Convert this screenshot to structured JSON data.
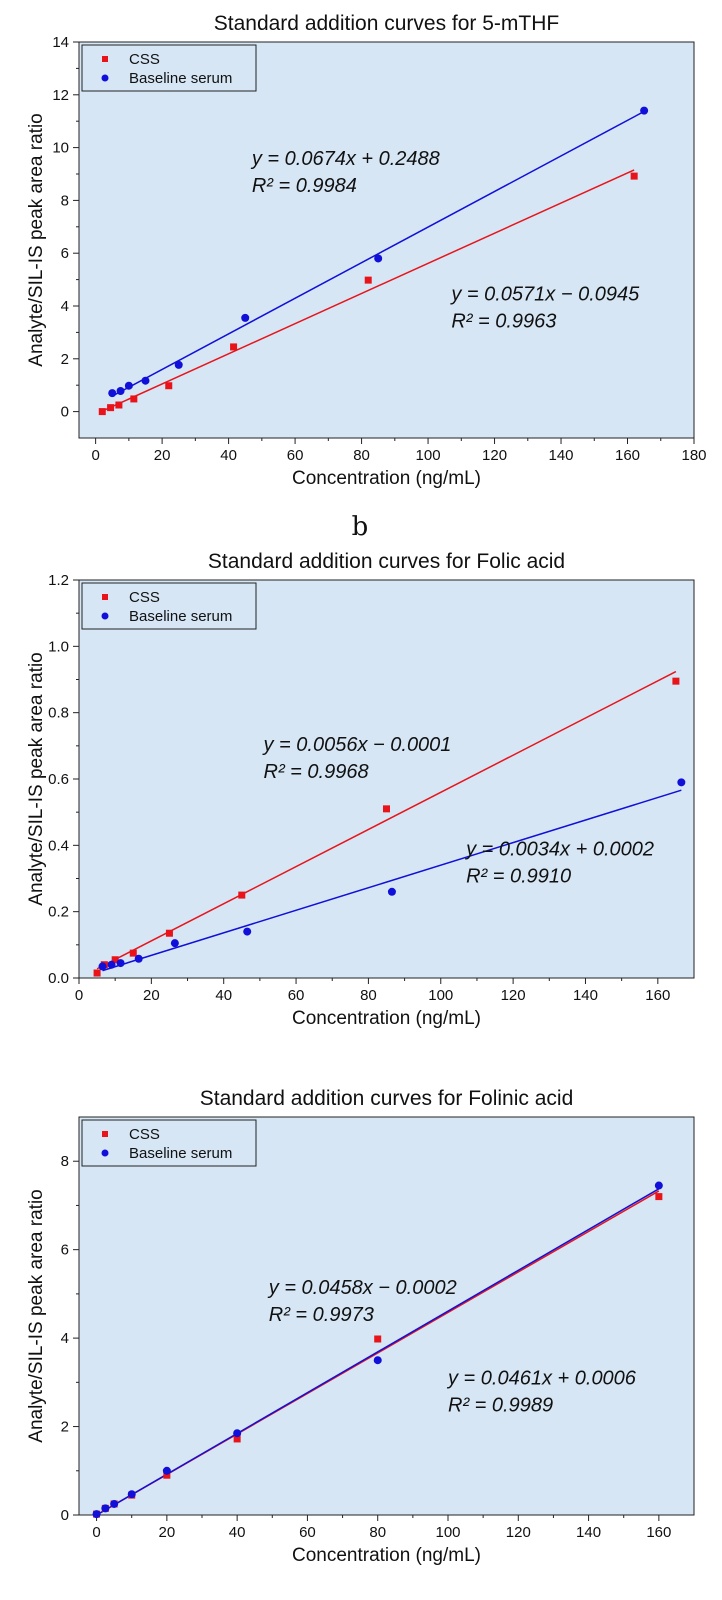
{
  "panel_labels": [
    "b"
  ],
  "chart_data": [
    {
      "type": "scatter",
      "title": "Standard addition curves for 5-mTHF",
      "xlabel": "Concentration (ng/mL)",
      "ylabel": "Analyte/SIL-IS peak area ratio",
      "xlim": [
        -5,
        180
      ],
      "ylim": [
        -1,
        14
      ],
      "xticks": [
        0,
        20,
        40,
        60,
        80,
        100,
        120,
        140,
        160,
        180
      ],
      "yticks": [
        0,
        2,
        4,
        6,
        8,
        10,
        12,
        14
      ],
      "background": "#d6e6f5",
      "legend": "top-left",
      "series": [
        {
          "name": "CSS",
          "color": "#e8141a",
          "marker": "square",
          "x": [
            2,
            4.5,
            7,
            11.5,
            22,
            41.5,
            82,
            162
          ],
          "y": [
            0.0,
            0.15,
            0.25,
            0.48,
            0.98,
            2.45,
            4.98,
            8.92
          ],
          "fit": {
            "slope": 0.0571,
            "intercept": -0.0945,
            "x_range": [
              2,
              162
            ]
          }
        },
        {
          "name": "Baseline serum",
          "color": "#1010d8",
          "marker": "circle",
          "x": [
            5,
            7.5,
            10,
            15,
            25,
            45,
            85,
            165
          ],
          "y": [
            0.7,
            0.78,
            0.98,
            1.17,
            1.77,
            3.55,
            5.8,
            11.4
          ],
          "fit": {
            "slope": 0.0674,
            "intercept": 0.2488,
            "x_range": [
              5,
              165
            ]
          }
        }
      ],
      "annotations": [
        {
          "series": 1,
          "lines": [
            "y = 0.0674x + 0.2488",
            "R² = 0.9984"
          ],
          "x": 47,
          "y": 9.35
        },
        {
          "series": 0,
          "lines": [
            "y = 0.0571x − 0.0945",
            "R² = 0.9963"
          ],
          "x": 107,
          "y": 4.2
        }
      ]
    },
    {
      "type": "scatter",
      "title": "Standard addition curves for Folic acid",
      "xlabel": "Concentration (ng/mL)",
      "ylabel": "Analyte/SIL-IS peak area ratio",
      "xlim": [
        0,
        170
      ],
      "ylim": [
        0,
        1.2
      ],
      "xticks": [
        0,
        20,
        40,
        60,
        80,
        100,
        120,
        140,
        160
      ],
      "yticks": [
        0.0,
        0.2,
        0.4,
        0.6,
        0.8,
        1.0,
        1.2
      ],
      "ytick_labels": [
        "0.0",
        "0.2",
        "0.4",
        "0.6",
        "0.8",
        "1.0",
        "1.2"
      ],
      "background": "#d6e6f5",
      "legend": "top-left",
      "series": [
        {
          "name": "CSS",
          "color": "#e8141a",
          "marker": "square",
          "x": [
            5,
            7,
            10,
            15,
            25,
            45,
            85,
            165
          ],
          "y": [
            0.015,
            0.04,
            0.055,
            0.075,
            0.135,
            0.25,
            0.51,
            0.895
          ],
          "fit": {
            "slope": 0.0056,
            "intercept": -0.0001,
            "x_range": [
              5,
              165
            ]
          }
        },
        {
          "name": "Baseline serum",
          "color": "#1010d8",
          "marker": "circle",
          "x": [
            6.5,
            9,
            11.5,
            16.5,
            26.5,
            46.5,
            86.5,
            166.5
          ],
          "y": [
            0.035,
            0.04,
            0.045,
            0.058,
            0.105,
            0.14,
            0.26,
            0.59
          ],
          "fit": {
            "slope": 0.0034,
            "intercept": 0.0002,
            "x_range": [
              6.5,
              166.5
            ]
          }
        }
      ],
      "annotations": [
        {
          "series": 0,
          "lines": [
            "y = 0.0056x − 0.0001",
            "R² = 0.9968"
          ],
          "x": 51,
          "y": 0.685
        },
        {
          "series": 1,
          "lines": [
            "y = 0.0034x + 0.0002",
            "R² = 0.9910"
          ],
          "x": 107,
          "y": 0.37
        }
      ]
    },
    {
      "type": "scatter",
      "title": "Standard addition curves for Folinic acid",
      "xlabel": "Concentration (ng/mL)",
      "ylabel": "Analyte/SIL-IS peak area ratio",
      "xlim": [
        -5,
        170
      ],
      "ylim": [
        0,
        9
      ],
      "xticks": [
        0,
        20,
        40,
        60,
        80,
        100,
        120,
        140,
        160
      ],
      "yticks": [
        0,
        2,
        4,
        6,
        8
      ],
      "background": "#d6e6f5",
      "legend": "top-left",
      "series": [
        {
          "name": "CSS",
          "color": "#e8141a",
          "marker": "square",
          "x": [
            0,
            2.5,
            5,
            10,
            20,
            40,
            80,
            160
          ],
          "y": [
            0.02,
            0.15,
            0.25,
            0.45,
            0.9,
            1.72,
            3.98,
            7.2
          ],
          "fit": {
            "slope": 0.0458,
            "intercept": -0.0002,
            "x_range": [
              0,
              160
            ]
          }
        },
        {
          "name": "Baseline serum",
          "color": "#1010d8",
          "marker": "circle",
          "x": [
            0,
            2.5,
            5,
            10,
            20,
            40,
            80,
            160
          ],
          "y": [
            0.02,
            0.15,
            0.25,
            0.47,
            1.0,
            1.85,
            3.5,
            7.45
          ],
          "fit": {
            "slope": 0.0461,
            "intercept": 0.0006,
            "x_range": [
              0,
              160
            ]
          }
        }
      ],
      "annotations": [
        {
          "series": 0,
          "lines": [
            "y = 0.0458x − 0.0002",
            "R² = 0.9973"
          ],
          "x": 49,
          "y": 5.0
        },
        {
          "series": 1,
          "lines": [
            "y = 0.0461x + 0.0006",
            "R² = 0.9989"
          ],
          "x": 100,
          "y": 2.95
        }
      ]
    }
  ]
}
